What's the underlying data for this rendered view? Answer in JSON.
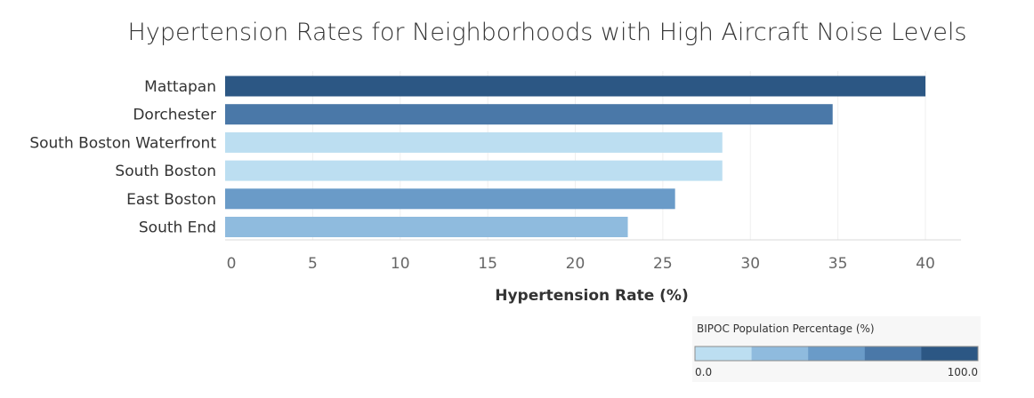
{
  "chart_data": {
    "type": "bar",
    "orientation": "horizontal",
    "title": "Hypertension Rates for Neighborhoods with High Aircraft Noise Levels",
    "xlabel": "Hypertension Rate (%)",
    "ylabel": "",
    "xlim": [
      0,
      42
    ],
    "xticks": [
      0,
      5,
      10,
      15,
      20,
      25,
      30,
      35,
      40
    ],
    "grid": true,
    "categories": [
      "Mattapan",
      "Dorchester",
      "South Boston Waterfront",
      "South Boston",
      "East Boston",
      "South End"
    ],
    "values": [
      40.0,
      34.7,
      28.4,
      28.4,
      25.7,
      23.0
    ],
    "colors": [
      "#2c5784",
      "#4a78a8",
      "#bcdef1",
      "#bcdef1",
      "#6a9bc8",
      "#8fbbde"
    ],
    "legend": {
      "title": "BIPOC Population Percentage (%)",
      "min_label": "0.0",
      "max_label": "100.0",
      "colors": [
        "#bcdef1",
        "#8fbbde",
        "#6a9bc8",
        "#4a78a8",
        "#2c5784"
      ],
      "placement": "bottom-right"
    }
  }
}
